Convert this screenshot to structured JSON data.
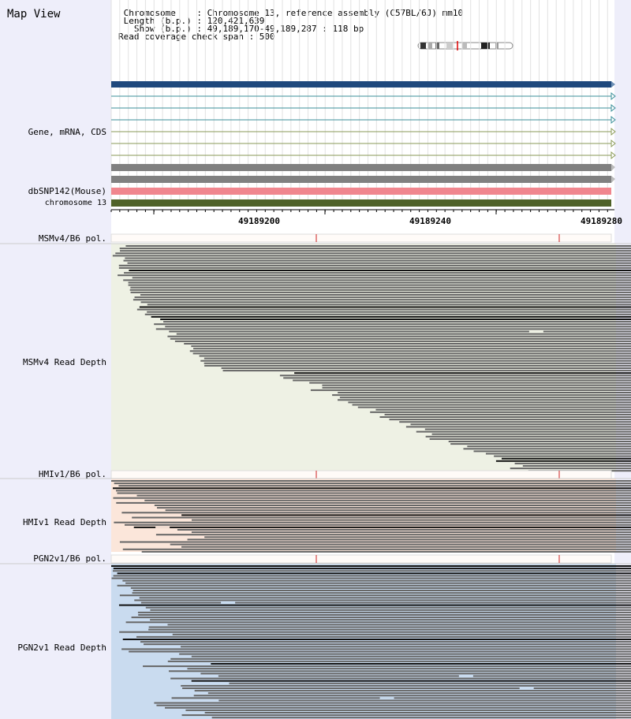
{
  "header": {
    "title": "Map View",
    "info_lines": [
      " Chromosome    : Chromosome 13, reference assembly (C57BL/6J) mm10",
      " Length (b.p.) : 120,421,639",
      "   Show (b.p.) : 49,189,170-49,189,287 : 118 bp",
      "Read coverage check span : 500"
    ]
  },
  "tracks": {
    "gene_label": "Gene, mRNA, CDS",
    "snp_label": "dbSNP142(Mouse)",
    "chrom_label": "chromosome 13"
  },
  "ruler": {
    "ticks": [
      "49189200",
      "49189240",
      "49189280"
    ]
  },
  "panels": [
    {
      "pol_label": "MSMv4/B6 pol.",
      "depth_label": "MSMv4 Read Depth",
      "bg": "#eef1e4"
    },
    {
      "pol_label": "HMIv1/B6 pol.",
      "depth_label": "HMIv1 Read Depth",
      "bg": "#fbe6da"
    },
    {
      "pol_label": "PGN2v1/B6 pol.",
      "depth_label": "PGN2v1 Read Depth",
      "bg": "#c9dbef"
    }
  ],
  "colors": {
    "left_panel": "#eeeefa",
    "gene_blue": "#1f497d",
    "transcript_teal": "#3b8f9a",
    "transcript_olive": "#8a9a57",
    "cds_gray": "#808080",
    "snp_pink": "#f0868e",
    "chrom_green": "#4f6228",
    "read_gray": "#666666",
    "read_dark": "#111111"
  }
}
